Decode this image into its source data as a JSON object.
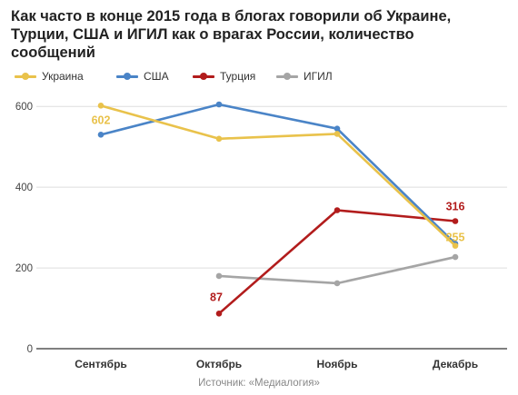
{
  "title_lines": [
    "Как часто в конце 2015 года в блогах говорили об Украине,",
    "Турции, США и ИГИЛ как о врагах России, количество",
    "сообщений"
  ],
  "source": "Источник: «Медиалогия»",
  "colors": {
    "ukraine": "#e9c24b",
    "usa": "#4a84c7",
    "turkey": "#b21c1c",
    "isis": "#a5a5a5",
    "grid": "#dddddd",
    "axis": "#333333"
  },
  "chart_data": {
    "type": "line",
    "categories": [
      "Сентябрь",
      "Октябрь",
      "Ноябрь",
      "Декабрь"
    ],
    "ylim": [
      0,
      650
    ],
    "yticks": [
      0,
      200,
      400,
      600
    ],
    "grid": true,
    "legend_position": "top-left",
    "series": [
      {
        "name": "Украина",
        "color_key": "ukraine",
        "values": [
          602,
          520,
          532,
          255
        ]
      },
      {
        "name": "США",
        "color_key": "usa",
        "values": [
          530,
          605,
          545,
          260
        ]
      },
      {
        "name": "Турция",
        "color_key": "turkey",
        "values": [
          null,
          87,
          343,
          316
        ]
      },
      {
        "name": "ИГИЛ",
        "color_key": "isis",
        "values": [
          null,
          180,
          162,
          227
        ]
      }
    ],
    "data_labels": [
      {
        "series": 0,
        "index": 0,
        "text": "602",
        "color_key": "ukraine"
      },
      {
        "series": 2,
        "index": 1,
        "text": "87",
        "color_key": "turkey"
      },
      {
        "series": 2,
        "index": 3,
        "text": "316",
        "color_key": "turkey"
      },
      {
        "series": 0,
        "index": 3,
        "text": "255",
        "color_key": "ukraine"
      }
    ]
  }
}
